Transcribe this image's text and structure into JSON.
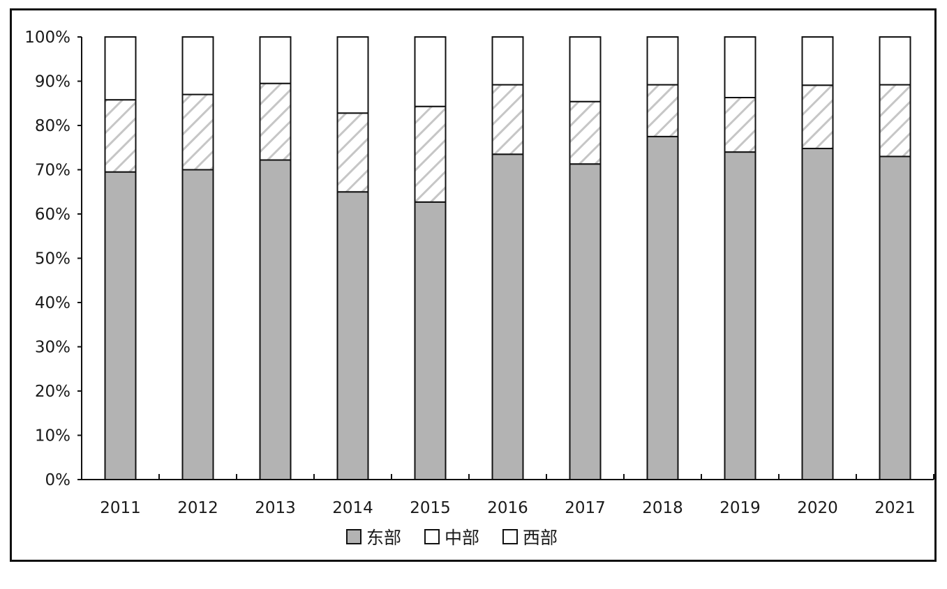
{
  "chart_data": {
    "type": "bar",
    "stacked": true,
    "percent_stacked": true,
    "categories": [
      "2011",
      "2012",
      "2013",
      "2014",
      "2015",
      "2016",
      "2017",
      "2018",
      "2019",
      "2020",
      "2021"
    ],
    "series": [
      {
        "name": "东部",
        "fill": "gray",
        "color": "#b3b3b3",
        "values": [
          69.5,
          70,
          72.2,
          65,
          62.7,
          73.5,
          71.3,
          77.5,
          74,
          74.8,
          73
        ]
      },
      {
        "name": "中部",
        "fill": "hatched",
        "color": "#ffffff",
        "values": [
          16.3,
          17,
          17.3,
          17.8,
          21.6,
          15.7,
          14.1,
          11.7,
          12.3,
          14.3,
          16.2
        ]
      },
      {
        "name": "西部",
        "fill": "white",
        "color": "#ffffff",
        "values": [
          14.2,
          13,
          10.5,
          17.2,
          15.7,
          10.8,
          14.6,
          10.8,
          13.7,
          10.9,
          10.8
        ]
      }
    ],
    "y_ticks": [
      "0%",
      "10%",
      "20%",
      "30%",
      "40%",
      "50%",
      "60%",
      "70%",
      "80%",
      "90%",
      "100%"
    ],
    "ylim": [
      0,
      100
    ],
    "title": "",
    "xlabel": "",
    "ylabel": "",
    "grid": false,
    "legend_position": "bottom"
  }
}
